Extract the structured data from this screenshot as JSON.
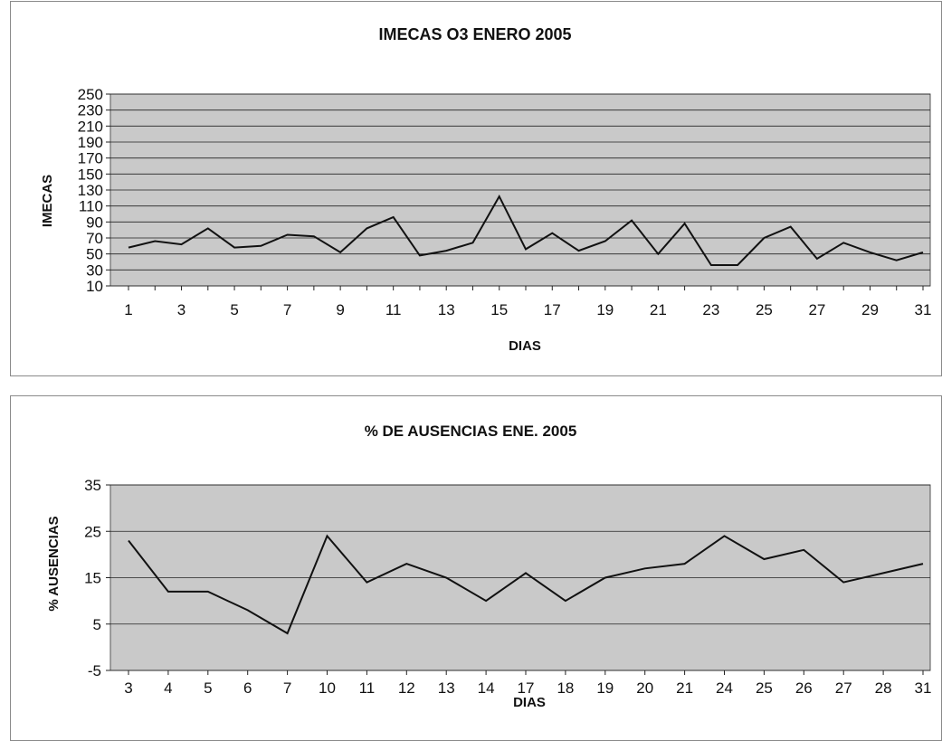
{
  "chart_data": [
    {
      "type": "line",
      "title": "IMECAS O3 ENERO 2005",
      "xlabel": "DIAS",
      "ylabel": "IMECAS",
      "ylim": [
        10,
        250
      ],
      "y_ticks": [
        10,
        30,
        50,
        70,
        90,
        110,
        130,
        150,
        170,
        190,
        210,
        230,
        250
      ],
      "x_tick_labels": [
        "1",
        "3",
        "5",
        "7",
        "9",
        "11",
        "13",
        "15",
        "17",
        "19",
        "21",
        "23",
        "25",
        "27",
        "29",
        "31"
      ],
      "x": [
        1,
        2,
        3,
        4,
        5,
        6,
        7,
        8,
        9,
        10,
        11,
        12,
        13,
        14,
        15,
        16,
        17,
        18,
        19,
        20,
        21,
        22,
        23,
        24,
        25,
        26,
        27,
        28,
        29,
        30,
        31
      ],
      "series": [
        {
          "values": [
            58,
            66,
            62,
            82,
            58,
            60,
            74,
            72,
            52,
            82,
            96,
            48,
            54,
            64,
            122,
            56,
            76,
            54,
            66,
            92,
            50,
            88,
            36,
            36,
            70,
            84,
            44,
            64,
            52,
            42,
            52
          ]
        }
      ],
      "grid": true,
      "background": "#c9c9c9",
      "line_color": "#111111"
    },
    {
      "type": "line",
      "title": "% DE AUSENCIAS ENE. 2005",
      "xlabel": "DIAS",
      "ylabel": "% AUSENCIAS",
      "ylim": [
        -5,
        35
      ],
      "y_ticks": [
        -5,
        5,
        15,
        25,
        35
      ],
      "categories": [
        "3",
        "4",
        "5",
        "6",
        "7",
        "10",
        "11",
        "12",
        "13",
        "14",
        "17",
        "18",
        "19",
        "20",
        "21",
        "24",
        "25",
        "26",
        "27",
        "28",
        "31"
      ],
      "series": [
        {
          "values": [
            23,
            12,
            12,
            8,
            3,
            24,
            14,
            18,
            15,
            10,
            16,
            10,
            15,
            17,
            18,
            24,
            19,
            21,
            14,
            16,
            18
          ]
        }
      ],
      "grid": true,
      "background": "#c9c9c9",
      "line_color": "#111111"
    }
  ]
}
